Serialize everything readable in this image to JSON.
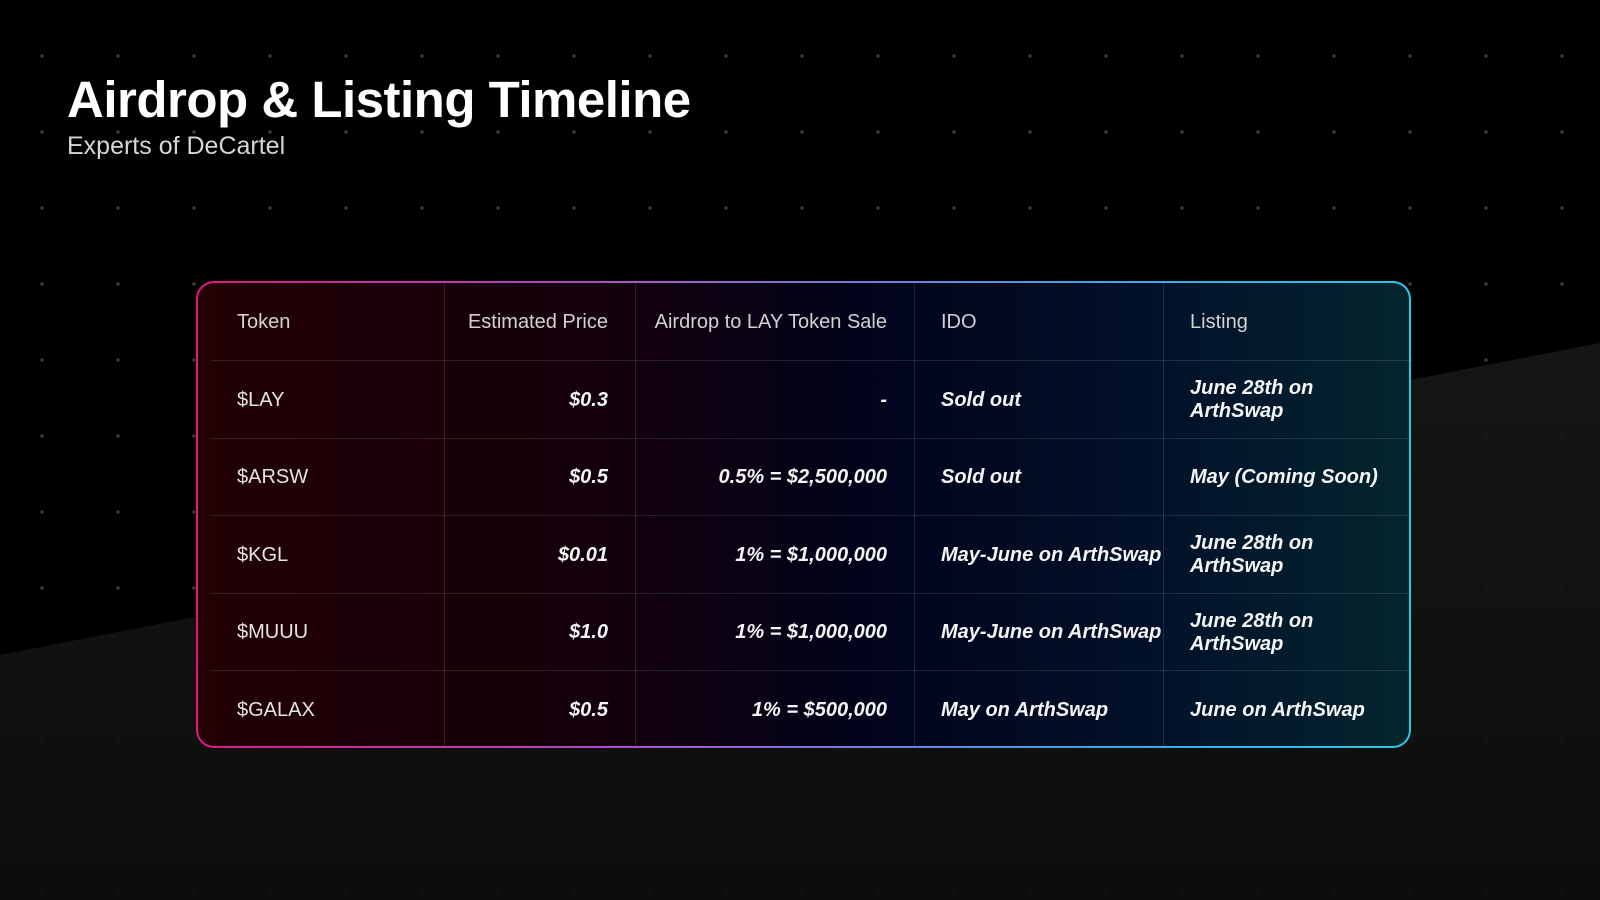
{
  "header": {
    "title": "Airdrop & Listing Timeline",
    "subtitle": "Experts of DeCartel"
  },
  "colors": {
    "border_start": "#e0197f",
    "border_end": "#27c9e6",
    "background": "#000000"
  },
  "table": {
    "columns": [
      "Token",
      "Estimated Price",
      "Airdrop to LAY Token Sale",
      "IDO",
      "Listing"
    ],
    "rows": [
      [
        "$LAY",
        "$0.3",
        "-",
        "Sold out",
        "June 28th on ArthSwap"
      ],
      [
        "$ARSW",
        "$0.5",
        "0.5% = $2,500,000",
        "Sold out",
        "May (Coming Soon)"
      ],
      [
        "$KGL",
        "$0.01",
        "1% = $1,000,000",
        "May-June on ArthSwap",
        "June 28th on ArthSwap"
      ],
      [
        "$MUUU",
        "$1.0",
        "1% = $1,000,000",
        "May-June on ArthSwap",
        "June 28th on ArthSwap"
      ],
      [
        "$GALAX",
        "$0.5",
        "1% = $500,000",
        "May on ArthSwap",
        "June on ArthSwap"
      ]
    ]
  }
}
